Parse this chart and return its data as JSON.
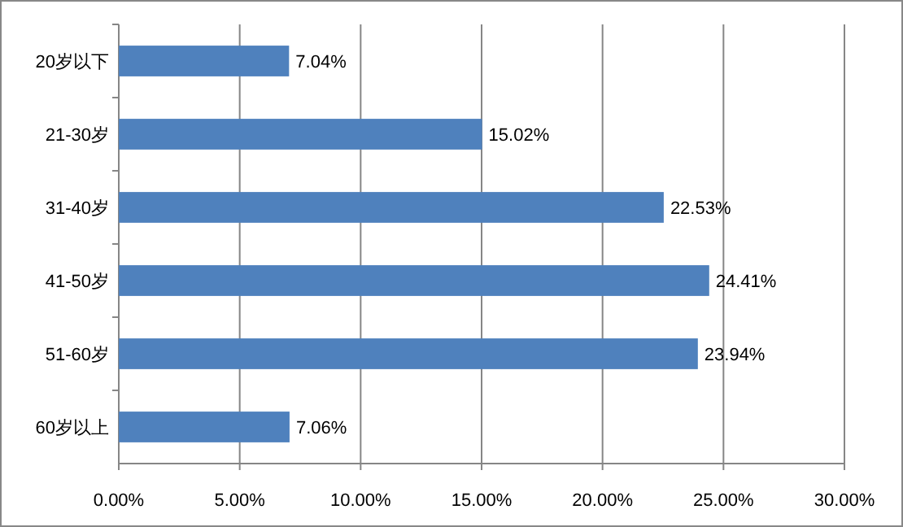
{
  "chart_data": {
    "type": "bar",
    "orientation": "horizontal",
    "categories": [
      "20岁以下",
      "21-30岁",
      "31-40岁",
      "41-50岁",
      "51-60岁",
      "60岁以上"
    ],
    "values": [
      7.04,
      15.02,
      22.53,
      24.41,
      23.94,
      7.06
    ],
    "value_labels": [
      "7.04%",
      "15.02%",
      "22.53%",
      "24.41%",
      "23.94%",
      "7.06%"
    ],
    "color": "#4f81bd",
    "xlim": [
      0,
      30
    ],
    "xticks": [
      {
        "value": 0,
        "label": "0.00%"
      },
      {
        "value": 5,
        "label": "5.00%"
      },
      {
        "value": 10,
        "label": "10.00%"
      },
      {
        "value": 15,
        "label": "15.00%"
      },
      {
        "value": 20,
        "label": "20.00%"
      },
      {
        "value": 25,
        "label": "25.00%"
      },
      {
        "value": 30,
        "label": "30.00%"
      }
    ],
    "grid": "x"
  }
}
